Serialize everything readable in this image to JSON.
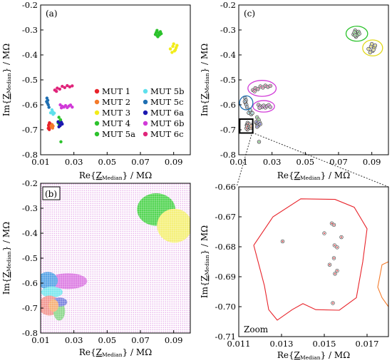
{
  "chart_data": [
    {
      "panel": "(a)",
      "type": "scatter",
      "xlabel": {
        "pre": "Re{",
        "z": "Z",
        "sub": "Median",
        "post": "} / MΩ"
      },
      "ylabel": {
        "pre": "Im{",
        "z": "Z",
        "sub": "Median",
        "post": "} / MΩ"
      },
      "xlim": [
        0.01,
        0.1
      ],
      "ylim": [
        -0.8,
        -0.2
      ],
      "xticks": [
        "0.01",
        "0.03",
        "0.05",
        "0.07",
        "0.09"
      ],
      "yticks": [
        "-0.2",
        "-0.3",
        "-0.4",
        "-0.5",
        "-0.6",
        "-0.7",
        "-0.8"
      ],
      "legend_position": "lower-right",
      "series": [
        {
          "name": "MUT 1",
          "color": "#e8232a",
          "points": [
            [
              0.0148,
              -0.682
            ],
            [
              0.0151,
              -0.678
            ],
            [
              0.0155,
              -0.69
            ],
            [
              0.0152,
              -0.699
            ],
            [
              0.0157,
              -0.681
            ],
            [
              0.0153,
              -0.672
            ],
            [
              0.016,
              -0.689
            ],
            [
              0.0146,
              -0.694
            ],
            [
              0.0158,
              -0.676
            ],
            [
              0.015,
              -0.686
            ]
          ]
        },
        {
          "name": "MUT 2",
          "color": "#f47a2a",
          "points": [
            [
              0.0163,
              -0.684
            ],
            [
              0.0166,
              -0.69
            ],
            [
              0.0169,
              -0.679
            ],
            [
              0.0172,
              -0.693
            ],
            [
              0.0175,
              -0.685
            ]
          ]
        },
        {
          "name": "MUT 3",
          "color": "#f2ec1a",
          "points": [
            [
              0.088,
              -0.376
            ],
            [
              0.0895,
              -0.366
            ],
            [
              0.0905,
              -0.384
            ],
            [
              0.0915,
              -0.371
            ],
            [
              0.09,
              -0.356
            ],
            [
              0.092,
              -0.362
            ],
            [
              0.089,
              -0.39
            ],
            [
              0.091,
              -0.38
            ]
          ]
        },
        {
          "name": "MUT 4",
          "color": "#2cc22c",
          "points": [
            [
              0.079,
              -0.318
            ],
            [
              0.08,
              -0.302
            ],
            [
              0.081,
              -0.312
            ],
            [
              0.0805,
              -0.327
            ],
            [
              0.082,
              -0.307
            ],
            [
              0.0815,
              -0.32
            ],
            [
              0.0795,
              -0.31
            ],
            [
              0.0825,
              -0.315
            ],
            [
              0.08,
              -0.322
            ]
          ]
        },
        {
          "name": "MUT 5a",
          "color": "#2cc22c",
          "points": [
            [
              0.021,
              -0.65
            ],
            [
              0.0215,
              -0.665
            ],
            [
              0.022,
              -0.66
            ],
            [
              0.0205,
              -0.672
            ],
            [
              0.0222,
              -0.748
            ],
            [
              0.0212,
              -0.68
            ]
          ]
        },
        {
          "name": "MUT 5b",
          "color": "#5fe0ec",
          "points": [
            [
              0.016,
              -0.632
            ],
            [
              0.0172,
              -0.627
            ],
            [
              0.0175,
              -0.638
            ],
            [
              0.0168,
              -0.62
            ],
            [
              0.0182,
              -0.633
            ]
          ]
        },
        {
          "name": "MUT 5c",
          "color": "#1f6fb2",
          "points": [
            [
              0.0138,
              -0.573
            ],
            [
              0.0143,
              -0.582
            ],
            [
              0.0141,
              -0.593
            ],
            [
              0.0146,
              -0.6
            ],
            [
              0.0136,
              -0.587
            ],
            [
              0.015,
              -0.61
            ]
          ]
        },
        {
          "name": "MUT 6a",
          "color": "#1c18b0",
          "points": [
            [
              0.0205,
              -0.668
            ],
            [
              0.0215,
              -0.675
            ],
            [
              0.0225,
              -0.67
            ],
            [
              0.0218,
              -0.683
            ],
            [
              0.023,
              -0.677
            ],
            [
              0.021,
              -0.688
            ]
          ]
        },
        {
          "name": "MUT 6b",
          "color": "#d13ad8",
          "points": [
            [
              0.0218,
              -0.6
            ],
            [
              0.023,
              -0.606
            ],
            [
              0.024,
              -0.609
            ],
            [
              0.025,
              -0.603
            ],
            [
              0.026,
              -0.611
            ],
            [
              0.027,
              -0.605
            ],
            [
              0.028,
              -0.601
            ],
            [
              0.029,
              -0.609
            ],
            [
              0.0225,
              -0.612
            ]
          ]
        },
        {
          "name": "MUT 6c",
          "color": "#e0247a",
          "points": [
            [
              0.0185,
              -0.541
            ],
            [
              0.02,
              -0.533
            ],
            [
              0.0215,
              -0.537
            ],
            [
              0.023,
              -0.526
            ],
            [
              0.0245,
              -0.531
            ],
            [
              0.026,
              -0.523
            ],
            [
              0.0275,
              -0.528
            ],
            [
              0.029,
              -0.524
            ],
            [
              0.0195,
              -0.546
            ]
          ]
        }
      ]
    },
    {
      "panel": "(b)",
      "type": "heatmap",
      "xlabel": {
        "pre": "Re{",
        "z": "Z",
        "sub": "Median",
        "post": "} / MΩ"
      },
      "ylabel": {
        "pre": "Im{",
        "z": "Z",
        "sub": "Median",
        "post": "} / MΩ"
      },
      "xlim": [
        0.01,
        0.1
      ],
      "ylim": [
        -0.8,
        -0.2
      ],
      "xticks": [
        "0.01",
        "0.03",
        "0.05",
        "0.07",
        "0.09"
      ],
      "yticks": [
        "-0.2",
        "-0.3",
        "-0.4",
        "-0.5",
        "-0.6",
        "-0.7",
        "-0.8"
      ],
      "background_class": "MUT 6b",
      "regions": [
        {
          "class": "MUT 4",
          "color": "#55d555",
          "cx": 0.0795,
          "cy": -0.305,
          "rx": 0.0115,
          "ry": 0.065
        },
        {
          "class": "MUT 3",
          "color": "#f5f07a",
          "cx": 0.0905,
          "cy": -0.37,
          "rx": 0.0105,
          "ry": 0.068
        },
        {
          "class": "MUT 6b",
          "color": "#dd80e3",
          "cx": 0.0265,
          "cy": -0.592,
          "rx": 0.0115,
          "ry": 0.032
        },
        {
          "class": "MUT 5c",
          "color": "#5aa6e6",
          "cx": 0.0143,
          "cy": -0.59,
          "rx": 0.006,
          "ry": 0.035
        },
        {
          "class": "MUT 5b",
          "color": "#7ee8ef",
          "cx": 0.0168,
          "cy": -0.636,
          "rx": 0.0065,
          "ry": 0.022
        },
        {
          "class": "MUT 1",
          "color": "#f39a95",
          "cx": 0.0153,
          "cy": -0.69,
          "rx": 0.0065,
          "ry": 0.04
        },
        {
          "class": "MUT 5a",
          "color": "#8fd88f",
          "cx": 0.0212,
          "cy": -0.712,
          "rx": 0.0035,
          "ry": 0.038
        },
        {
          "class": "MUT 6a",
          "color": "#7f86e0",
          "cx": 0.0215,
          "cy": -0.676,
          "rx": 0.0045,
          "ry": 0.018
        },
        {
          "class": "MUT 2",
          "color": "#f6b27a",
          "cx": 0.0178,
          "cy": -0.69,
          "rx": 0.003,
          "ry": 0.025
        }
      ]
    },
    {
      "panel": "(c)",
      "type": "scatter",
      "xlabel": {
        "pre": "Re{",
        "z": "Z",
        "sub": "Median",
        "post": "} / MΩ"
      },
      "ylabel": {
        "pre": "Im{",
        "z": "Z",
        "sub": "Median",
        "post": "} / MΩ"
      },
      "xlim": [
        0.01,
        0.1
      ],
      "ylim": [
        -0.8,
        -0.2
      ],
      "xticks": [
        "0.01",
        "0.03",
        "0.05",
        "0.07",
        "0.09"
      ],
      "yticks": [
        "-0.2",
        "-0.3",
        "-0.4",
        "-0.5",
        "-0.6",
        "-0.7",
        "-0.8"
      ],
      "boundaries": [
        {
          "class": "MUT 4",
          "color": "#2cc22c",
          "cx": 0.081,
          "cy": -0.315,
          "rx": 0.0065,
          "ry": 0.03
        },
        {
          "class": "MUT 3",
          "color": "#e0d81a",
          "cx": 0.0905,
          "cy": -0.372,
          "rx": 0.006,
          "ry": 0.032
        },
        {
          "class": "MUT 6c",
          "color": "#d13ad8",
          "cx": 0.024,
          "cy": -0.534,
          "rx": 0.0085,
          "ry": 0.032
        },
        {
          "class": "MUT 6b",
          "color": "#d13ad8",
          "cx": 0.025,
          "cy": -0.606,
          "rx": 0.0065,
          "ry": 0.023
        },
        {
          "class": "MUT 5c",
          "color": "#1f6fb2",
          "cx": 0.0145,
          "cy": -0.592,
          "rx": 0.004,
          "ry": 0.028
        }
      ],
      "zoom_box": {
        "x": [
          0.011,
          0.018
        ],
        "y": [
          -0.71,
          -0.66
        ]
      }
    },
    {
      "panel": "Zoom",
      "type": "scatter",
      "xlabel": {
        "pre": "Re{",
        "z": "Z",
        "sub": "Median",
        "post": "} / MΩ"
      },
      "ylabel": {
        "pre": "Im{",
        "z": "Z",
        "sub": "Median",
        "post": "} / MΩ"
      },
      "xlim": [
        0.011,
        0.018
      ],
      "ylim": [
        -0.71,
        -0.66
      ],
      "xticks": [
        "0.011",
        "0.013",
        "0.015",
        "0.017"
      ],
      "yticks": [
        "-0.66",
        "-0.67",
        "-0.68",
        "-0.69",
        "-0.70",
        "-0.71"
      ],
      "series": [
        {
          "name": "MUT 1",
          "color": "#e8232a",
          "points": [
            [
              0.01305,
              -0.6782
            ],
            [
              0.015,
              -0.6755
            ],
            [
              0.01535,
              -0.6722
            ],
            [
              0.01545,
              -0.6727
            ],
            [
              0.01548,
              -0.6795
            ],
            [
              0.0158,
              -0.6768
            ],
            [
              0.0156,
              -0.6802
            ],
            [
              0.01545,
              -0.6838
            ],
            [
              0.01525,
              -0.686
            ],
            [
              0.0155,
              -0.689
            ],
            [
              0.0156,
              -0.688
            ],
            [
              0.0154,
              -0.6988
            ]
          ]
        }
      ],
      "boundaries": [
        {
          "class": "MUT 1",
          "color": "#e8232a",
          "points": [
            [
              0.0117,
              -0.6795
            ],
            [
              0.0126,
              -0.67
            ],
            [
              0.0139,
              -0.664
            ],
            [
              0.0155,
              -0.6642
            ],
            [
              0.0164,
              -0.6668
            ],
            [
              0.017,
              -0.674
            ],
            [
              0.0168,
              -0.685
            ],
            [
              0.0165,
              -0.697
            ],
            [
              0.0157,
              -0.7012
            ],
            [
              0.0146,
              -0.701
            ],
            [
              0.014,
              -0.699
            ],
            [
              0.0135,
              -0.701
            ],
            [
              0.0128,
              -0.7045
            ],
            [
              0.0124,
              -0.701
            ],
            [
              0.0122,
              -0.693
            ],
            [
              0.0117,
              -0.6795
            ]
          ]
        },
        {
          "class": "MUT 2",
          "color": "#f47a2a",
          "points": [
            [
              0.018,
              -0.685
            ],
            [
              0.0177,
              -0.686
            ],
            [
              0.0175,
              -0.6935
            ],
            [
              0.0177,
              -0.697
            ],
            [
              0.018,
              -0.7
            ]
          ]
        }
      ]
    }
  ]
}
